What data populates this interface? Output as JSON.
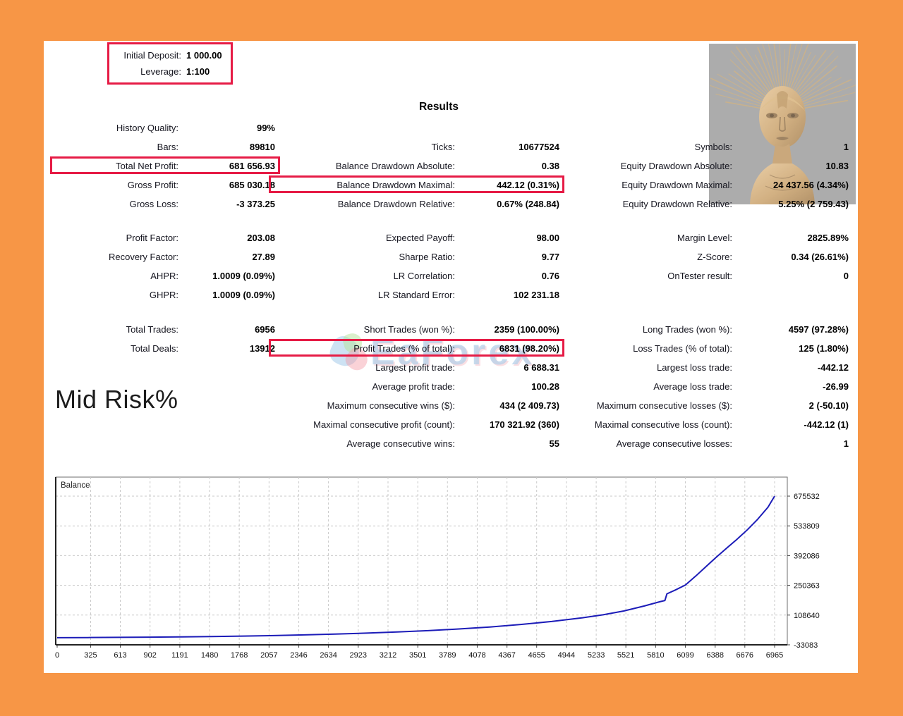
{
  "frame": {
    "border_color": "#f79646",
    "highlight_color": "#e61b45"
  },
  "deposit_box": {
    "rows": [
      {
        "label": "Initial Deposit:",
        "value": "1 000.00"
      },
      {
        "label": "Leverage:",
        "value": "1:100"
      }
    ]
  },
  "results_title": "Results",
  "watermark_text": "EaForex",
  "risk_label": "Mid Risk%",
  "stats_blocks": [
    {
      "rows": [
        {
          "l": {
            "label": "History Quality:",
            "value": "99%"
          },
          "m": null,
          "r": null
        },
        {
          "l": {
            "label": "Bars:",
            "value": "89810"
          },
          "m": {
            "label": "Ticks:",
            "value": "10677524"
          },
          "r": {
            "label": "Symbols:",
            "value": "1"
          }
        },
        {
          "l": {
            "label": "Total Net Profit:",
            "value": "681 656.93",
            "box": true
          },
          "m": {
            "label": "Balance Drawdown Absolute:",
            "value": "0.38"
          },
          "r": {
            "label": "Equity Drawdown Absolute:",
            "value": "10.83"
          }
        },
        {
          "l": {
            "label": "Gross Profit:",
            "value": "685 030.18"
          },
          "m": {
            "label": "Balance Drawdown Maximal:",
            "value": "442.12 (0.31%)",
            "box": true
          },
          "r": {
            "label": "Equity Drawdown Maximal:",
            "value": "24 437.56 (4.34%)"
          }
        },
        {
          "l": {
            "label": "Gross Loss:",
            "value": "-3 373.25"
          },
          "m": {
            "label": "Balance Drawdown Relative:",
            "value": "0.67% (248.84)"
          },
          "r": {
            "label": "Equity Drawdown Relative:",
            "value": "5.25% (2 759.43)"
          }
        }
      ]
    },
    {
      "rows": [
        {
          "l": {
            "label": "Profit Factor:",
            "value": "203.08"
          },
          "m": {
            "label": "Expected Payoff:",
            "value": "98.00"
          },
          "r": {
            "label": "Margin Level:",
            "value": "2825.89%"
          }
        },
        {
          "l": {
            "label": "Recovery Factor:",
            "value": "27.89"
          },
          "m": {
            "label": "Sharpe Ratio:",
            "value": "9.77"
          },
          "r": {
            "label": "Z-Score:",
            "value": "0.34 (26.61%)"
          }
        },
        {
          "l": {
            "label": "AHPR:",
            "value": "1.0009 (0.09%)"
          },
          "m": {
            "label": "LR Correlation:",
            "value": "0.76"
          },
          "r": {
            "label": "OnTester result:",
            "value": "0"
          }
        },
        {
          "l": {
            "label": "GHPR:",
            "value": "1.0009 (0.09%)"
          },
          "m": {
            "label": "LR Standard Error:",
            "value": "102 231.18"
          },
          "r": null
        }
      ]
    },
    {
      "rows": [
        {
          "l": {
            "label": "Total Trades:",
            "value": "6956"
          },
          "m": {
            "label": "Short Trades (won %):",
            "value": "2359 (100.00%)"
          },
          "r": {
            "label": "Long Trades (won %):",
            "value": "4597 (97.28%)"
          }
        },
        {
          "l": {
            "label": "Total Deals:",
            "value": "13912"
          },
          "m": {
            "label": "Profit Trades (% of total):",
            "value": "6831 (98.20%)",
            "box": true
          },
          "r": {
            "label": "Loss Trades (% of total):",
            "value": "125 (1.80%)"
          }
        },
        {
          "l": null,
          "m": {
            "label": "Largest profit trade:",
            "value": "6 688.31"
          },
          "r": {
            "label": "Largest loss trade:",
            "value": "-442.12"
          }
        },
        {
          "l": null,
          "m": {
            "label": "Average profit trade:",
            "value": "100.28"
          },
          "r": {
            "label": "Average loss trade:",
            "value": "-26.99"
          }
        },
        {
          "l": null,
          "m": {
            "label": "Maximum consecutive wins ($):",
            "value": "434 (2 409.73)"
          },
          "r": {
            "label": "Maximum consecutive losses ($):",
            "value": "2 (-50.10)"
          }
        },
        {
          "l": null,
          "m": {
            "label": "Maximal consecutive profit (count):",
            "value": "170 321.92 (360)"
          },
          "r": {
            "label": "Maximal consecutive loss (count):",
            "value": "-442.12 (1)"
          }
        },
        {
          "l": null,
          "m": {
            "label": "Average consecutive wins:",
            "value": "55"
          },
          "r": {
            "label": "Average consecutive losses:",
            "value": "1"
          }
        }
      ]
    }
  ],
  "chart_data": {
    "type": "line",
    "title": "Balance",
    "xlabel": "",
    "ylabel": "",
    "grid": "dashed",
    "legend_position": "none",
    "xlim": [
      0,
      7089
    ],
    "ylim": [
      -33083,
      766217
    ],
    "x_ticks": [
      0,
      325,
      613,
      902,
      1191,
      1480,
      1768,
      2057,
      2346,
      2634,
      2923,
      3212,
      3501,
      3789,
      4078,
      4367,
      4655,
      4944,
      5233,
      5521,
      5810,
      6099,
      6388,
      6676,
      6965
    ],
    "y_ticks": [
      675532,
      533809,
      392086,
      250363,
      108640,
      -33083
    ],
    "series": [
      {
        "name": "Balance",
        "color": "#1c1cb8",
        "points": [
          [
            0,
            1000
          ],
          [
            300,
            1600
          ],
          [
            600,
            2400
          ],
          [
            900,
            3400
          ],
          [
            1200,
            4700
          ],
          [
            1500,
            6300
          ],
          [
            1800,
            8400
          ],
          [
            2100,
            11000
          ],
          [
            2400,
            14200
          ],
          [
            2700,
            18000
          ],
          [
            3000,
            22500
          ],
          [
            3300,
            28000
          ],
          [
            3600,
            34500
          ],
          [
            3900,
            42500
          ],
          [
            4200,
            52000
          ],
          [
            4500,
            64000
          ],
          [
            4800,
            78000
          ],
          [
            5100,
            96000
          ],
          [
            5300,
            110000
          ],
          [
            5500,
            128000
          ],
          [
            5700,
            152000
          ],
          [
            5850,
            172000
          ],
          [
            5900,
            178000
          ],
          [
            5920,
            210000
          ],
          [
            6000,
            228000
          ],
          [
            6099,
            252000
          ],
          [
            6200,
            295000
          ],
          [
            6300,
            340000
          ],
          [
            6400,
            385000
          ],
          [
            6500,
            428000
          ],
          [
            6600,
            470000
          ],
          [
            6700,
            515000
          ],
          [
            6800,
            565000
          ],
          [
            6900,
            622000
          ],
          [
            6965,
            675532
          ]
        ]
      }
    ]
  }
}
